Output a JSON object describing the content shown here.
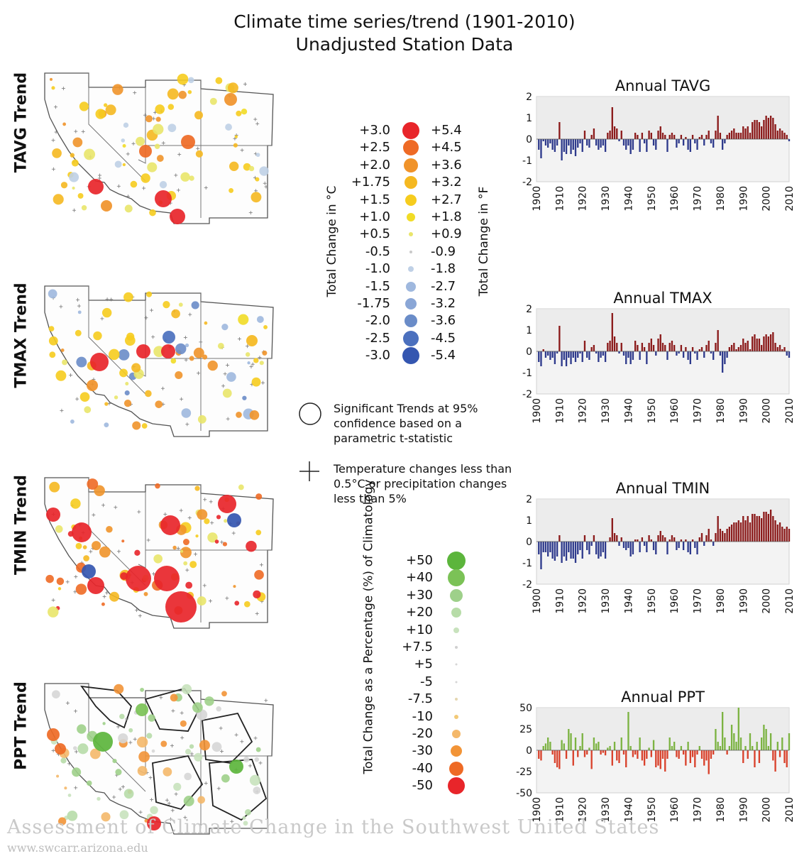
{
  "title": {
    "line1": "Climate time series/trend (1901-2010)",
    "line2": "Unadjusted Station Data"
  },
  "row_labels": [
    "TAVG Trend",
    "TMAX Trend",
    "TMIN Trend",
    "PPT Trend"
  ],
  "temp_legend": {
    "axis_c": "Total Change in °C",
    "axis_f": "Total Change in °F",
    "entries": [
      {
        "c": "+3.0",
        "f": "+5.4",
        "color": "#e8252a"
      },
      {
        "c": "+2.5",
        "f": "+4.5",
        "color": "#ee6a25"
      },
      {
        "c": "+2.0",
        "f": "+3.6",
        "color": "#f0932a"
      },
      {
        "c": "+1.75",
        "f": "+3.2",
        "color": "#f5b820"
      },
      {
        "c": "+1.5",
        "f": "+2.7",
        "color": "#f6cc1e"
      },
      {
        "c": "+1.0",
        "f": "+1.8",
        "color": "#f1dc26"
      },
      {
        "c": "+0.5",
        "f": "+0.9",
        "color": "#e9e56a"
      },
      {
        "c": "-0.5",
        "f": "-0.9",
        "color": "#c9c9c9"
      },
      {
        "c": "-1.0",
        "f": "-1.8",
        "color": "#bfd0e6"
      },
      {
        "c": "-1.5",
        "f": "-2.7",
        "color": "#9fb8de"
      },
      {
        "c": "-1.75",
        "f": "-3.2",
        "color": "#8aa6d6"
      },
      {
        "c": "-2.0",
        "f": "-3.6",
        "color": "#6a8cc8"
      },
      {
        "c": "-2.5",
        "f": "-4.5",
        "color": "#4b70be"
      },
      {
        "c": "-3.0",
        "f": "-5.4",
        "color": "#3456b0"
      }
    ]
  },
  "notes": {
    "significant": "Significant Trends at 95% confidence based on a parametric t-statistic",
    "plus": "Temperature changes less than 0.5°C or precipitation changes less than 5%"
  },
  "ppt_legend": {
    "axis": "Total Change as a Percentage (%) of Climatology",
    "entries": [
      {
        "v": "+50",
        "color": "#5cb53c"
      },
      {
        "v": "+40",
        "color": "#7bc256"
      },
      {
        "v": "+30",
        "color": "#9ed08a"
      },
      {
        "v": "+20",
        "color": "#b7dca8"
      },
      {
        "v": "+10",
        "color": "#c8e2bd"
      },
      {
        "v": "+7.5",
        "color": "#d0d0d0"
      },
      {
        "v": "+5",
        "color": "#d6d6d6"
      },
      {
        "v": "-5",
        "color": "#d6d6d6"
      },
      {
        "v": "-7.5",
        "color": "#e4d6b0"
      },
      {
        "v": "-10",
        "color": "#f2c977"
      },
      {
        "v": "-20",
        "color": "#f4b86a"
      },
      {
        "v": "-30",
        "color": "#f29437"
      },
      {
        "v": "-40",
        "color": "#ee6a25"
      },
      {
        "v": "-50",
        "color": "#e8252a"
      }
    ]
  },
  "footer": {
    "line1": "Assessment of Climate Change in the Southwest United States",
    "line2": "www.swcarr.arizona.edu"
  },
  "colors": {
    "pos_temp": "#8b1a1a",
    "neg_temp": "#2e3a8c",
    "pos_ppt": "#7cb342",
    "neg_ppt": "#d9412b",
    "panel_bg": "#f3f3f3"
  },
  "chart_data": [
    {
      "type": "bar",
      "title": "Annual TAVG",
      "ylim": [
        -2,
        2
      ],
      "yticks": [
        "2",
        "1",
        "0",
        "-1",
        "-2"
      ],
      "xticks": [
        "1900",
        "1910",
        "1920",
        "1930",
        "1940",
        "1950",
        "1960",
        "1970",
        "1980",
        "1990",
        "2000",
        "2010"
      ],
      "x_start": 1901,
      "values": [
        -0.5,
        -0.9,
        -0.1,
        -0.3,
        -0.4,
        -0.2,
        -0.5,
        -0.6,
        -0.3,
        0.8,
        -1.0,
        -0.6,
        -0.7,
        -0.3,
        -0.7,
        -0.5,
        -0.8,
        -0.4,
        -0.2,
        -0.6,
        0.4,
        -0.3,
        -0.4,
        0.2,
        0.5,
        -0.3,
        -0.5,
        -0.4,
        -0.3,
        -0.6,
        0.3,
        0.4,
        1.5,
        0.6,
        0.5,
        -0.1,
        0.4,
        -0.3,
        -0.5,
        -0.3,
        -0.7,
        -0.5,
        0.3,
        0.2,
        -0.6,
        0.3,
        -0.2,
        -0.6,
        0.4,
        0.3,
        -0.3,
        -0.5,
        0.4,
        0.6,
        0.3,
        0.2,
        -0.6,
        0.2,
        0.3,
        0.2,
        -0.4,
        -0.2,
        0.2,
        -0.3,
        0.1,
        -0.5,
        -0.6,
        0.2,
        -0.2,
        -0.5,
        0.1,
        0.2,
        -0.3,
        0.2,
        0.4,
        -0.2,
        -0.4,
        0.4,
        1.1,
        0.3,
        -0.5,
        -0.2,
        0.2,
        0.3,
        0.4,
        0.5,
        0.3,
        0.3,
        0.3,
        0.6,
        0.5,
        0.6,
        0.3,
        0.8,
        0.9,
        0.9,
        0.8,
        0.6,
        0.9,
        1.1,
        1.0,
        1.1,
        1.0,
        0.7,
        0.4,
        0.5,
        0.4,
        0.3,
        0.2,
        -0.1
      ]
    },
    {
      "type": "bar",
      "title": "Annual TMAX",
      "ylim": [
        -2,
        2
      ],
      "yticks": [
        "2",
        "1",
        "0",
        "-1",
        "-2"
      ],
      "xticks": [
        "1900",
        "1910",
        "1920",
        "1930",
        "1940",
        "1950",
        "1960",
        "1970",
        "1980",
        "1990",
        "2000",
        "2010"
      ],
      "x_start": 1901,
      "values": [
        -0.5,
        -0.7,
        0.1,
        -0.3,
        -0.2,
        -0.4,
        -0.3,
        -0.6,
        -0.1,
        1.2,
        -0.7,
        -0.4,
        -0.7,
        -0.3,
        -0.6,
        -0.3,
        -0.5,
        -0.3,
        -0.1,
        -0.5,
        0.5,
        -0.3,
        -0.4,
        0.2,
        0.3,
        -0.1,
        -0.5,
        -0.3,
        -0.2,
        -0.5,
        0.4,
        0.5,
        1.8,
        0.7,
        0.4,
        -0.1,
        0.4,
        -0.2,
        -0.6,
        -0.3,
        -0.6,
        -0.4,
        0.5,
        0.3,
        -0.4,
        0.4,
        0.2,
        -0.6,
        0.4,
        0.6,
        0.3,
        -0.2,
        0.6,
        0.8,
        0.4,
        0.3,
        -0.4,
        0.4,
        0.5,
        0.3,
        -0.2,
        -0.1,
        0.3,
        -0.3,
        0.2,
        -0.4,
        -0.6,
        0.2,
        -0.1,
        -0.4,
        0.1,
        0.2,
        -0.3,
        0.3,
        0.5,
        -0.1,
        -0.4,
        0.4,
        1.0,
        -0.2,
        -1.0,
        -0.6,
        -0.3,
        0.2,
        0.3,
        0.4,
        0.1,
        0.2,
        0.3,
        0.6,
        0.4,
        0.5,
        0.1,
        0.7,
        0.8,
        0.6,
        0.6,
        0.3,
        0.7,
        0.8,
        0.7,
        0.8,
        0.9,
        0.4,
        0.2,
        0.3,
        0.1,
        0.2,
        -0.2,
        -0.3
      ]
    },
    {
      "type": "bar",
      "title": "Annual TMIN",
      "ylim": [
        -2,
        2
      ],
      "yticks": [
        "2",
        "1",
        "0",
        "-1",
        "-2"
      ],
      "xticks": [
        "1900",
        "1910",
        "1920",
        "1930",
        "1940",
        "1950",
        "1960",
        "1970",
        "1980",
        "1990",
        "2000",
        "2010"
      ],
      "x_start": 1901,
      "values": [
        -0.6,
        -1.3,
        -0.5,
        -0.5,
        -0.7,
        -0.5,
        -0.8,
        -0.9,
        -0.7,
        0.3,
        -1.0,
        -0.7,
        -0.9,
        -0.5,
        -0.8,
        -0.8,
        -1.0,
        -0.6,
        -0.4,
        -0.8,
        0.3,
        -0.4,
        -0.6,
        -0.2,
        0.3,
        -0.6,
        -0.8,
        -0.7,
        -0.5,
        -0.8,
        0.0,
        0.2,
        1.1,
        0.4,
        0.3,
        -0.2,
        0.2,
        -0.3,
        -0.4,
        -0.3,
        -0.7,
        -0.6,
        0.1,
        0.1,
        -0.5,
        0.2,
        -0.2,
        -0.5,
        0.3,
        0.1,
        -0.4,
        -0.6,
        0.3,
        0.5,
        0.3,
        0.2,
        -0.6,
        0.1,
        0.3,
        0.2,
        -0.4,
        -0.3,
        0.1,
        -0.4,
        0.1,
        -0.5,
        -0.6,
        0.1,
        -0.3,
        -0.6,
        0.2,
        0.4,
        -0.2,
        0.3,
        0.6,
        0.1,
        -0.2,
        0.4,
        1.2,
        0.6,
        0.5,
        0.4,
        0.6,
        0.7,
        0.8,
        0.9,
        0.9,
        1.0,
        0.9,
        1.2,
        1.0,
        1.2,
        0.9,
        1.3,
        1.3,
        1.2,
        1.2,
        1.1,
        1.4,
        1.4,
        1.3,
        1.5,
        1.2,
        1.0,
        0.8,
        0.9,
        0.7,
        0.6,
        0.7,
        0.6
      ]
    },
    {
      "type": "bar",
      "title": "Annual PPT",
      "ylim": [
        -50,
        50
      ],
      "yticks": [
        "50",
        "25",
        "0",
        "-25",
        "-50"
      ],
      "xticks": [
        "1900",
        "1910",
        "1920",
        "1930",
        "1940",
        "1950",
        "1960",
        "1970",
        "1980",
        "1990",
        "2000",
        "2010"
      ],
      "x_start": 1901,
      "values": [
        -10,
        -12,
        5,
        8,
        15,
        10,
        -5,
        -15,
        -20,
        -22,
        12,
        8,
        -10,
        25,
        20,
        -18,
        15,
        -8,
        5,
        20,
        -8,
        -5,
        3,
        -22,
        15,
        8,
        10,
        -5,
        -3,
        -6,
        3,
        5,
        -18,
        10,
        -12,
        -15,
        15,
        -5,
        -20,
        45,
        5,
        -8,
        -5,
        -10,
        15,
        -12,
        -18,
        -10,
        3,
        -8,
        12,
        -20,
        -18,
        -22,
        -10,
        -25,
        -10,
        15,
        5,
        10,
        -8,
        -10,
        5,
        -5,
        -18,
        10,
        -15,
        -8,
        -20,
        -5,
        5,
        -10,
        -18,
        -12,
        -28,
        -10,
        -5,
        25,
        10,
        5,
        45,
        15,
        -5,
        5,
        30,
        20,
        10,
        50,
        15,
        -15,
        5,
        -10,
        20,
        5,
        -20,
        10,
        -15,
        15,
        30,
        25,
        5,
        20,
        -12,
        -25,
        10,
        -8,
        15,
        -15,
        -20,
        20
      ]
    }
  ]
}
